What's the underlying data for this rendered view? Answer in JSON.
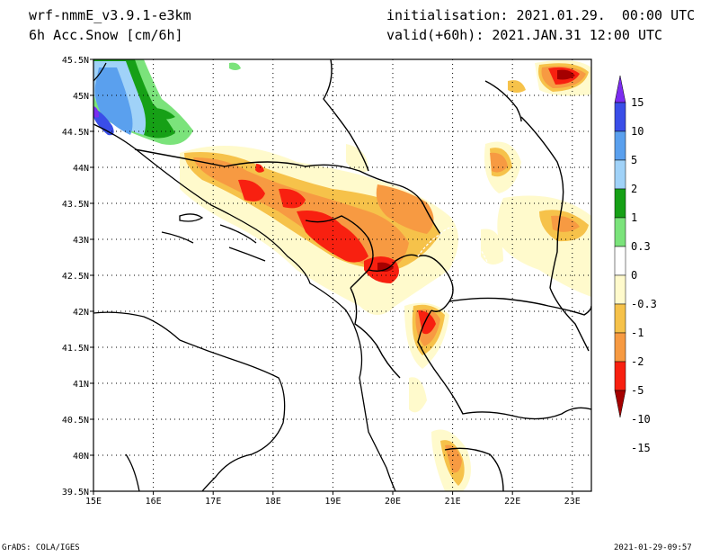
{
  "header": {
    "model": "wrf-nmmE_v3.9.1-e3km",
    "field": "6h Acc.Snow [cm/6h]",
    "init": "initialisation: 2021.01.29.  00:00 UTC",
    "valid": "valid(+60h): 2021.JAN.31 12:00 UTC"
  },
  "map": {
    "lat_labels": [
      "45.5N",
      "45N",
      "44.5N",
      "44N",
      "43.5N",
      "43N",
      "42.5N",
      "42N",
      "41.5N",
      "41N",
      "40.5N",
      "40N",
      "39.5N"
    ],
    "lon_labels": [
      "15E",
      "16E",
      "17E",
      "18E",
      "19E",
      "20E",
      "21E",
      "22E",
      "23E"
    ]
  },
  "colorbar": {
    "labels": [
      "15",
      "10",
      "5",
      "2",
      "1",
      "0.3",
      "0",
      "-0.3",
      "-1",
      "-2",
      "-5",
      "-10",
      "-15"
    ],
    "colors": [
      "#7b2cf0",
      "#3a4ee8",
      "#5aa0ee",
      "#a0d2f8",
      "#16a016",
      "#7be37b",
      "#ffffff",
      "#fffacc",
      "#f6c24a",
      "#f79a42",
      "#f82010",
      "#a50000"
    ]
  },
  "footer": {
    "left": "GrADS: COLA/IGES",
    "right": "2021-01-29-09:57"
  }
}
